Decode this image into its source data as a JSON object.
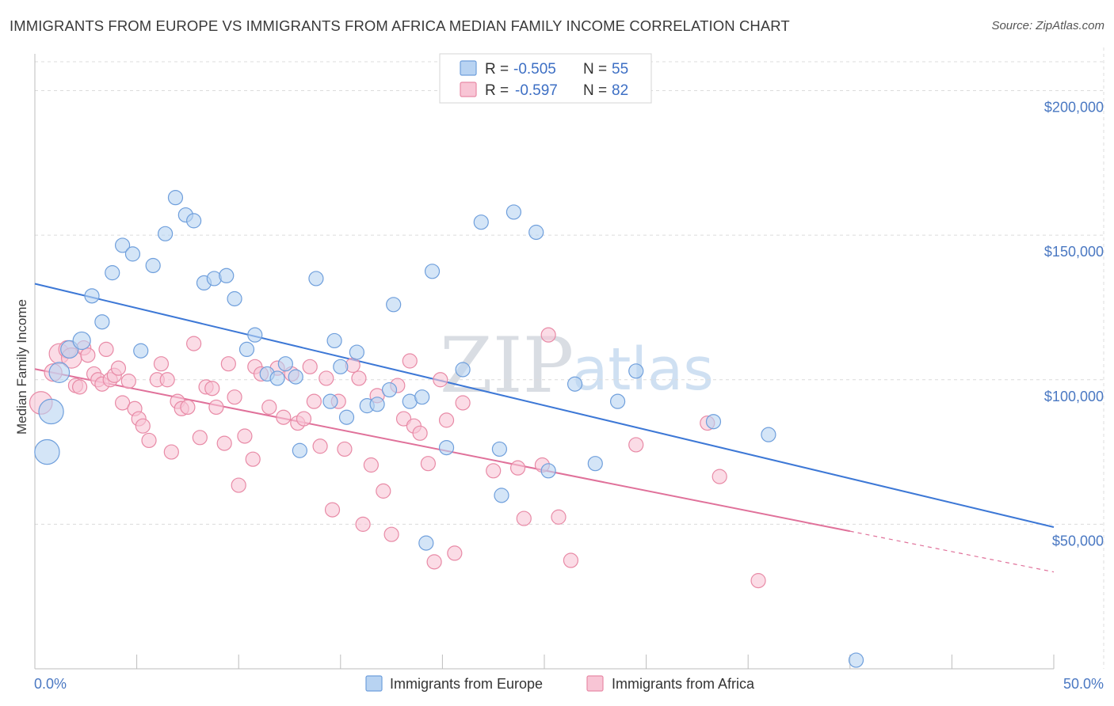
{
  "title": "IMMIGRANTS FROM EUROPE VS IMMIGRANTS FROM AFRICA MEDIAN FAMILY INCOME CORRELATION CHART",
  "source": "Source: ZipAtlas.com",
  "watermark": {
    "zip": "ZIP",
    "atlas": "atlas"
  },
  "legend": {
    "r_label": "R =",
    "n_label": "N =",
    "rows": [
      {
        "r": "-0.505",
        "n": "55",
        "color": "#b8d3f2",
        "stroke": "#6f9fdc"
      },
      {
        "r": "-0.597",
        "n": "82",
        "color": "#f8c5d5",
        "stroke": "#e88aa6"
      }
    ]
  },
  "bottom_legend": [
    "Immigrants from Europe",
    "Immigrants from Africa"
  ],
  "chart_data": {
    "type": "scatter",
    "title": "IMMIGRANTS FROM EUROPE VS IMMIGRANTS FROM AFRICA MEDIAN FAMILY INCOME CORRELATION CHART",
    "xlabel": "",
    "ylabel": "Median Family Income",
    "xlim": [
      0,
      50
    ],
    "ylim": [
      0,
      210000
    ],
    "x_tick_labels": [
      "0.0%",
      "50.0%"
    ],
    "y_ticks": [
      50000,
      100000,
      150000,
      200000
    ],
    "y_tick_labels": [
      "$50,000",
      "$100,000",
      "$150,000",
      "$200,000"
    ],
    "grid": true,
    "legend_position": "top-center",
    "series": [
      {
        "name": "Immigrants from Europe",
        "color": "#6f9fdc",
        "fill": "#b8d3f2",
        "trend": {
          "x": [
            0,
            50
          ],
          "y": [
            133200,
            49000
          ],
          "color": "#3d78d6"
        },
        "points": [
          [
            0.6,
            75000,
            3
          ],
          [
            0.8,
            89000,
            3
          ],
          [
            1.2,
            102500,
            2
          ],
          [
            1.7,
            110500,
            1.5
          ],
          [
            2.3,
            113500,
            1.5
          ],
          [
            2.8,
            129000,
            1
          ],
          [
            3.3,
            120000,
            1
          ],
          [
            3.8,
            137000,
            1
          ],
          [
            4.3,
            146500,
            1
          ],
          [
            4.8,
            143500,
            1
          ],
          [
            5.2,
            110000,
            1
          ],
          [
            5.8,
            139500,
            1
          ],
          [
            6.4,
            150500,
            1
          ],
          [
            6.9,
            163000,
            1
          ],
          [
            7.4,
            157000,
            1
          ],
          [
            7.8,
            155000,
            1
          ],
          [
            8.3,
            133500,
            1
          ],
          [
            8.8,
            135000,
            1
          ],
          [
            9.4,
            136000,
            1
          ],
          [
            9.8,
            128000,
            1
          ],
          [
            10.4,
            110500,
            1
          ],
          [
            10.8,
            115500,
            1
          ],
          [
            11.4,
            102000,
            1
          ],
          [
            11.9,
            100500,
            1
          ],
          [
            12.3,
            105500,
            1
          ],
          [
            12.8,
            101000,
            1
          ],
          [
            13.0,
            75500,
            1
          ],
          [
            13.8,
            135000,
            1
          ],
          [
            14.5,
            92500,
            1
          ],
          [
            14.7,
            113500,
            1
          ],
          [
            15.0,
            104500,
            1
          ],
          [
            15.3,
            87000,
            1
          ],
          [
            15.8,
            109500,
            1
          ],
          [
            16.3,
            91000,
            1
          ],
          [
            16.8,
            91500,
            1
          ],
          [
            17.4,
            96500,
            1
          ],
          [
            17.6,
            126000,
            1
          ],
          [
            18.4,
            92500,
            1
          ],
          [
            19.0,
            94000,
            1
          ],
          [
            19.2,
            43500,
            1
          ],
          [
            19.5,
            137500,
            1
          ],
          [
            20.2,
            76500,
            1
          ],
          [
            21.0,
            103500,
            1
          ],
          [
            21.9,
            154500,
            1
          ],
          [
            22.8,
            76000,
            1
          ],
          [
            22.9,
            60000,
            1
          ],
          [
            23.5,
            158000,
            1
          ],
          [
            24.6,
            151000,
            1
          ],
          [
            25.2,
            68500,
            1
          ],
          [
            26.5,
            98500,
            1
          ],
          [
            27.5,
            71000,
            1
          ],
          [
            28.6,
            92500,
            1
          ],
          [
            29.5,
            103000,
            1
          ],
          [
            33.3,
            85500,
            1
          ],
          [
            36.0,
            81000,
            1
          ],
          [
            40.3,
            3000,
            1
          ]
        ]
      },
      {
        "name": "Immigrants from Africa",
        "color": "#e88aa6",
        "fill": "#f8c5d5",
        "trend": {
          "x": [
            0,
            40
          ],
          "y": [
            103700,
            47600
          ],
          "color": "#e0719a"
        },
        "trend_dashed": {
          "x": [
            40,
            50
          ],
          "y": [
            47600,
            33500
          ]
        },
        "points": [
          [
            0.3,
            92000,
            2.5
          ],
          [
            0.9,
            102500,
            1.5
          ],
          [
            1.2,
            109000,
            2
          ],
          [
            1.6,
            110500,
            1.5
          ],
          [
            1.8,
            107500,
            2
          ],
          [
            2.0,
            98000,
            1
          ],
          [
            2.2,
            97500,
            1
          ],
          [
            2.4,
            111000,
            1
          ],
          [
            2.6,
            108500,
            1
          ],
          [
            2.9,
            102000,
            1
          ],
          [
            3.1,
            100000,
            1
          ],
          [
            3.3,
            98500,
            1
          ],
          [
            3.5,
            110500,
            1
          ],
          [
            3.7,
            100000,
            1
          ],
          [
            3.9,
            101500,
            1
          ],
          [
            4.1,
            104000,
            1
          ],
          [
            4.3,
            92000,
            1
          ],
          [
            4.6,
            99500,
            1
          ],
          [
            4.9,
            90000,
            1
          ],
          [
            5.1,
            86500,
            1
          ],
          [
            5.3,
            84000,
            1
          ],
          [
            5.6,
            79000,
            1
          ],
          [
            6.0,
            100000,
            1
          ],
          [
            6.2,
            105500,
            1
          ],
          [
            6.5,
            100000,
            1
          ],
          [
            6.7,
            75000,
            1
          ],
          [
            7.0,
            92500,
            1
          ],
          [
            7.2,
            90000,
            1
          ],
          [
            7.5,
            90500,
            1
          ],
          [
            7.8,
            112500,
            1
          ],
          [
            8.1,
            80000,
            1
          ],
          [
            8.4,
            97500,
            1
          ],
          [
            8.7,
            97000,
            1
          ],
          [
            8.9,
            90500,
            1
          ],
          [
            9.3,
            78000,
            1
          ],
          [
            9.5,
            105500,
            1
          ],
          [
            9.8,
            94000,
            1
          ],
          [
            10.0,
            63500,
            1
          ],
          [
            10.3,
            80500,
            1
          ],
          [
            10.7,
            72500,
            1
          ],
          [
            10.8,
            104500,
            1
          ],
          [
            11.1,
            102000,
            1
          ],
          [
            11.5,
            90500,
            1
          ],
          [
            11.9,
            104000,
            1
          ],
          [
            12.2,
            87000,
            1
          ],
          [
            12.6,
            102000,
            1
          ],
          [
            12.9,
            85000,
            1
          ],
          [
            13.2,
            86500,
            1
          ],
          [
            13.5,
            104500,
            1
          ],
          [
            13.7,
            92500,
            1
          ],
          [
            14.0,
            77000,
            1
          ],
          [
            14.3,
            100500,
            1
          ],
          [
            14.6,
            55000,
            1
          ],
          [
            14.9,
            92500,
            1
          ],
          [
            15.2,
            76000,
            1
          ],
          [
            15.6,
            105000,
            1
          ],
          [
            15.9,
            100500,
            1
          ],
          [
            16.1,
            50000,
            1
          ],
          [
            16.5,
            70500,
            1
          ],
          [
            16.8,
            94500,
            1
          ],
          [
            17.1,
            61500,
            1
          ],
          [
            17.5,
            46500,
            1
          ],
          [
            17.8,
            98000,
            1
          ],
          [
            18.1,
            86500,
            1
          ],
          [
            18.4,
            106500,
            1
          ],
          [
            18.6,
            84000,
            1
          ],
          [
            18.9,
            81500,
            1
          ],
          [
            19.3,
            71000,
            1
          ],
          [
            19.6,
            37000,
            1
          ],
          [
            19.9,
            100000,
            1
          ],
          [
            20.2,
            86000,
            1
          ],
          [
            20.6,
            40000,
            1
          ],
          [
            21.0,
            92000,
            1
          ],
          [
            22.5,
            68500,
            1
          ],
          [
            23.7,
            69500,
            1
          ],
          [
            24.0,
            52000,
            1
          ],
          [
            24.9,
            70500,
            1
          ],
          [
            25.2,
            115500,
            1
          ],
          [
            25.7,
            52500,
            1
          ],
          [
            26.3,
            37500,
            1
          ],
          [
            29.5,
            77500,
            1
          ],
          [
            33.0,
            85000,
            1
          ],
          [
            33.6,
            66500,
            1
          ],
          [
            35.5,
            30500,
            1
          ]
        ]
      }
    ]
  }
}
